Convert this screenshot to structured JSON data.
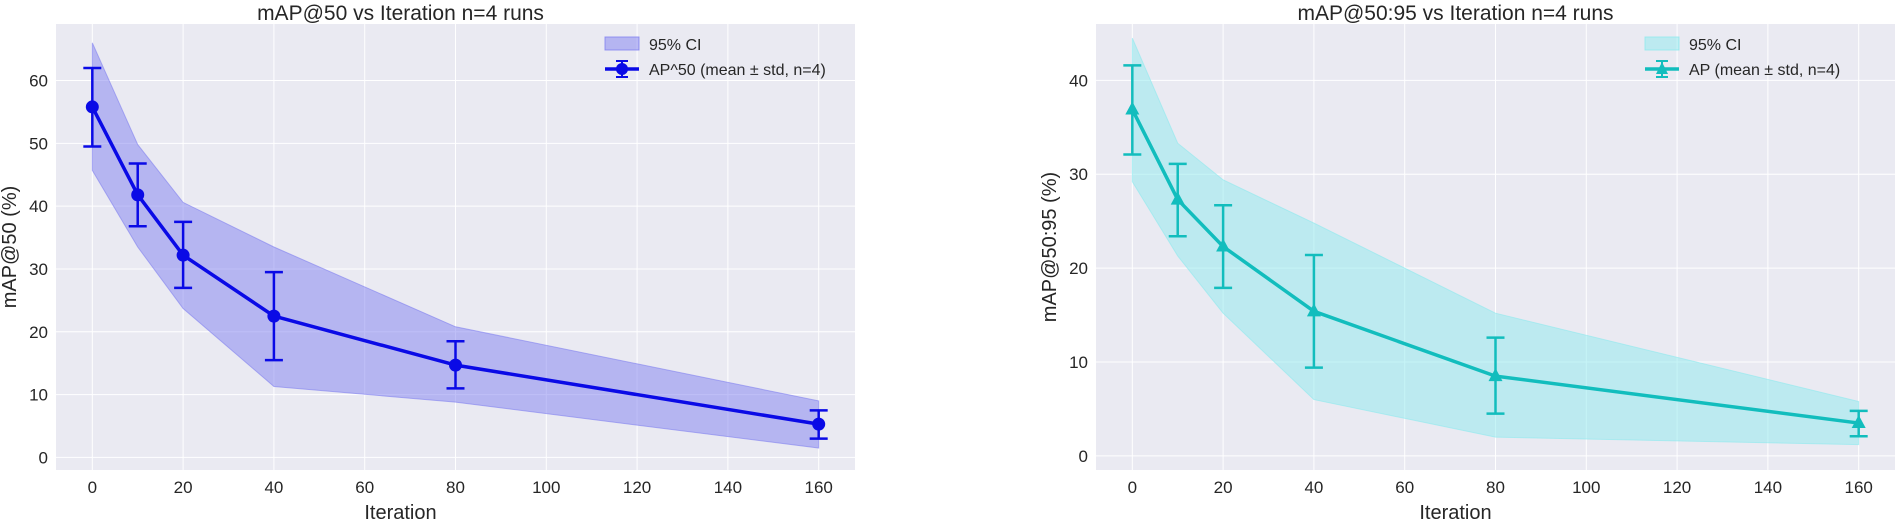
{
  "chart_data": [
    {
      "type": "line",
      "title": "mAP@50 vs Iteration  n=4 runs",
      "xlabel": "Iteration",
      "ylabel": "mAP@50 (%)",
      "xlim": [
        -8,
        168
      ],
      "ylim": [
        -2,
        69
      ],
      "xticks": [
        0,
        20,
        40,
        60,
        80,
        100,
        120,
        140,
        160
      ],
      "yticks": [
        0,
        10,
        20,
        30,
        40,
        50,
        60
      ],
      "grid": true,
      "legend_position": "top-right",
      "x": [
        0,
        10,
        20,
        40,
        80,
        160
      ],
      "series": [
        {
          "name": "AP^50 (mean ± std, n=4)",
          "marker": "circle",
          "color": "#0a0ae6",
          "values": [
            55.8,
            41.8,
            32.2,
            22.5,
            14.7,
            5.3
          ],
          "err_low": [
            49.5,
            36.8,
            27.0,
            15.5,
            11.0,
            3.0
          ],
          "err_high": [
            62.0,
            46.8,
            37.5,
            29.5,
            18.5,
            7.5
          ]
        }
      ],
      "band": {
        "name": "95% CI",
        "color": "#8080f0",
        "lower": [
          45.7,
          33.5,
          23.7,
          11.3,
          8.8,
          1.5
        ],
        "upper": [
          66.0,
          49.8,
          40.6,
          33.5,
          20.8,
          9.0
        ]
      }
    },
    {
      "type": "line",
      "title": "mAP@50:95 vs Iteration  n=4 runs",
      "xlabel": "Iteration",
      "ylabel": "mAP@50:95 (%)",
      "xlim": [
        -8,
        168
      ],
      "ylim": [
        -1.5,
        46
      ],
      "xticks": [
        0,
        20,
        40,
        60,
        80,
        100,
        120,
        140,
        160
      ],
      "yticks": [
        0,
        10,
        20,
        30,
        40
      ],
      "grid": true,
      "legend_position": "top-right",
      "x": [
        0,
        10,
        20,
        40,
        80,
        160
      ],
      "series": [
        {
          "name": "AP (mean ± std, n=4)",
          "marker": "triangle",
          "color": "#12bdbd",
          "values": [
            36.9,
            27.3,
            22.3,
            15.4,
            8.5,
            3.5
          ],
          "err_low": [
            32.1,
            23.4,
            17.9,
            9.4,
            4.5,
            2.1
          ],
          "err_high": [
            41.6,
            31.1,
            26.7,
            21.4,
            12.6,
            4.8
          ]
        }
      ],
      "band": {
        "name": "95% CI",
        "color": "#8ee9ee",
        "lower": [
          29.2,
          21.3,
          15.2,
          6.0,
          2.0,
          1.2
        ],
        "upper": [
          44.5,
          33.3,
          29.4,
          24.8,
          15.2,
          5.8
        ]
      }
    }
  ]
}
